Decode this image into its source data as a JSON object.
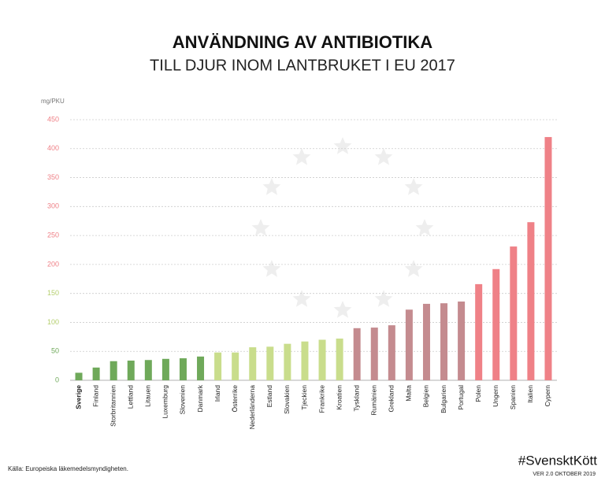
{
  "chart_data": {
    "type": "bar",
    "title": "ANVÄNDNING AV ANTIBIOTIKA",
    "subtitle": "TILL DJUR INOM LANTBRUKET I EU 2017",
    "y_label": "mg/PKU",
    "source": "Källa: Europeiska läkemedelsmyndigheten.",
    "brand": "#SvensktKött",
    "version": "VER 2.0 OKTOBER 2019",
    "categories": [
      "Sverige",
      "Finland",
      "Storbritannien",
      "Lettland",
      "Litauen",
      "Luxemburg",
      "Slovenien",
      "Danmark",
      "Irland",
      "Österrike",
      "Nederländerna",
      "Estland",
      "Slovakien",
      "Tjeckien",
      "Frankrike",
      "Kroatien",
      "Tyskland",
      "Rumänien",
      "Grekland",
      "Malta",
      "Belgien",
      "Bulgarien",
      "Portugal",
      "Polen",
      "Ungern",
      "Spanien",
      "Italien",
      "Cypern"
    ],
    "values": [
      13,
      22,
      33,
      34,
      35,
      37,
      38,
      41,
      48,
      48,
      57,
      58,
      63,
      67,
      70,
      72,
      90,
      91,
      95,
      122,
      132,
      133,
      136,
      166,
      192,
      231,
      273,
      420
    ],
    "colors": [
      "#6fa95a",
      "#6fa95a",
      "#6fa95a",
      "#6fa95a",
      "#6fa95a",
      "#6fa95a",
      "#6fa95a",
      "#6fa95a",
      "#c9dd8c",
      "#c9dd8c",
      "#c9dd8c",
      "#c9dd8c",
      "#c9dd8c",
      "#c9dd8c",
      "#c9dd8c",
      "#c9dd8c",
      "#c48b8f",
      "#c48b8f",
      "#c48b8f",
      "#c48b8f",
      "#c48b8f",
      "#c48b8f",
      "#c48b8f",
      "#ef8187",
      "#ef8187",
      "#ef8187",
      "#ef8187",
      "#ef8187"
    ],
    "ylim": [
      0,
      450
    ],
    "yticks": [
      0,
      50,
      100,
      150,
      200,
      250,
      300,
      350,
      400,
      450
    ],
    "ytick_colors": [
      "#6fa95a",
      "#6fa95a",
      "#b5cf6e",
      "#b5cf6e",
      "#ef8187",
      "#ef8187",
      "#ef8187",
      "#ef8187",
      "#ef8187",
      "#ef8187"
    ],
    "grid": true
  }
}
